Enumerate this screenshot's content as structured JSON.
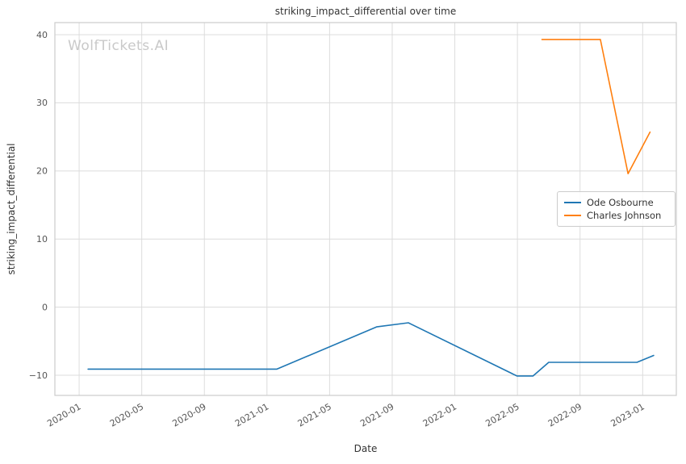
{
  "watermark": "WolfTickets.AI",
  "chart_data": {
    "type": "line",
    "title": "striking_impact_differential over time",
    "xlabel": "Date",
    "ylabel": "striking_impact_differential",
    "grid": true,
    "legend_position": "center right",
    "x_ticks": [
      "2020-01",
      "2020-05",
      "2020-09",
      "2021-01",
      "2021-05",
      "2021-09",
      "2022-01",
      "2022-05",
      "2022-09",
      "2023-01"
    ],
    "y_ticks": [
      -10,
      0,
      10,
      20,
      30,
      40
    ],
    "y_tick_labels": [
      "−10",
      "0",
      "10",
      "20",
      "30",
      "40"
    ],
    "ylim": [
      -12.96,
      41.78
    ],
    "x_range_months": [
      -1.55,
      38.15
    ],
    "series": [
      {
        "name": "Ode Osbourne",
        "color": "#1f77b4",
        "points": [
          {
            "date": "2020-01-18",
            "value": -9.1
          },
          {
            "date": "2021-01-20",
            "value": -9.1
          },
          {
            "date": "2021-08-01",
            "value": -2.9
          },
          {
            "date": "2021-10-02",
            "value": -2.3
          },
          {
            "date": "2022-04-30",
            "value": -10.1
          },
          {
            "date": "2022-06-01",
            "value": -10.1
          },
          {
            "date": "2022-07-01",
            "value": -8.1
          },
          {
            "date": "2022-12-20",
            "value": -8.1
          },
          {
            "date": "2023-01-22",
            "value": -7.1
          }
        ]
      },
      {
        "name": "Charles Johnson",
        "color": "#ff7f0e",
        "points": [
          {
            "date": "2022-06-18",
            "value": 39.3
          },
          {
            "date": "2022-10-10",
            "value": 39.3
          },
          {
            "date": "2022-12-03",
            "value": 19.6
          },
          {
            "date": "2023-01-15",
            "value": 25.7
          }
        ]
      }
    ],
    "style": {
      "grid_color": "#dcdcdc",
      "frame_color": "#cccccc",
      "tick_color": "#555555",
      "text_color": "#333333",
      "background": "#ffffff",
      "watermark_color": "#c9c9c9"
    }
  }
}
